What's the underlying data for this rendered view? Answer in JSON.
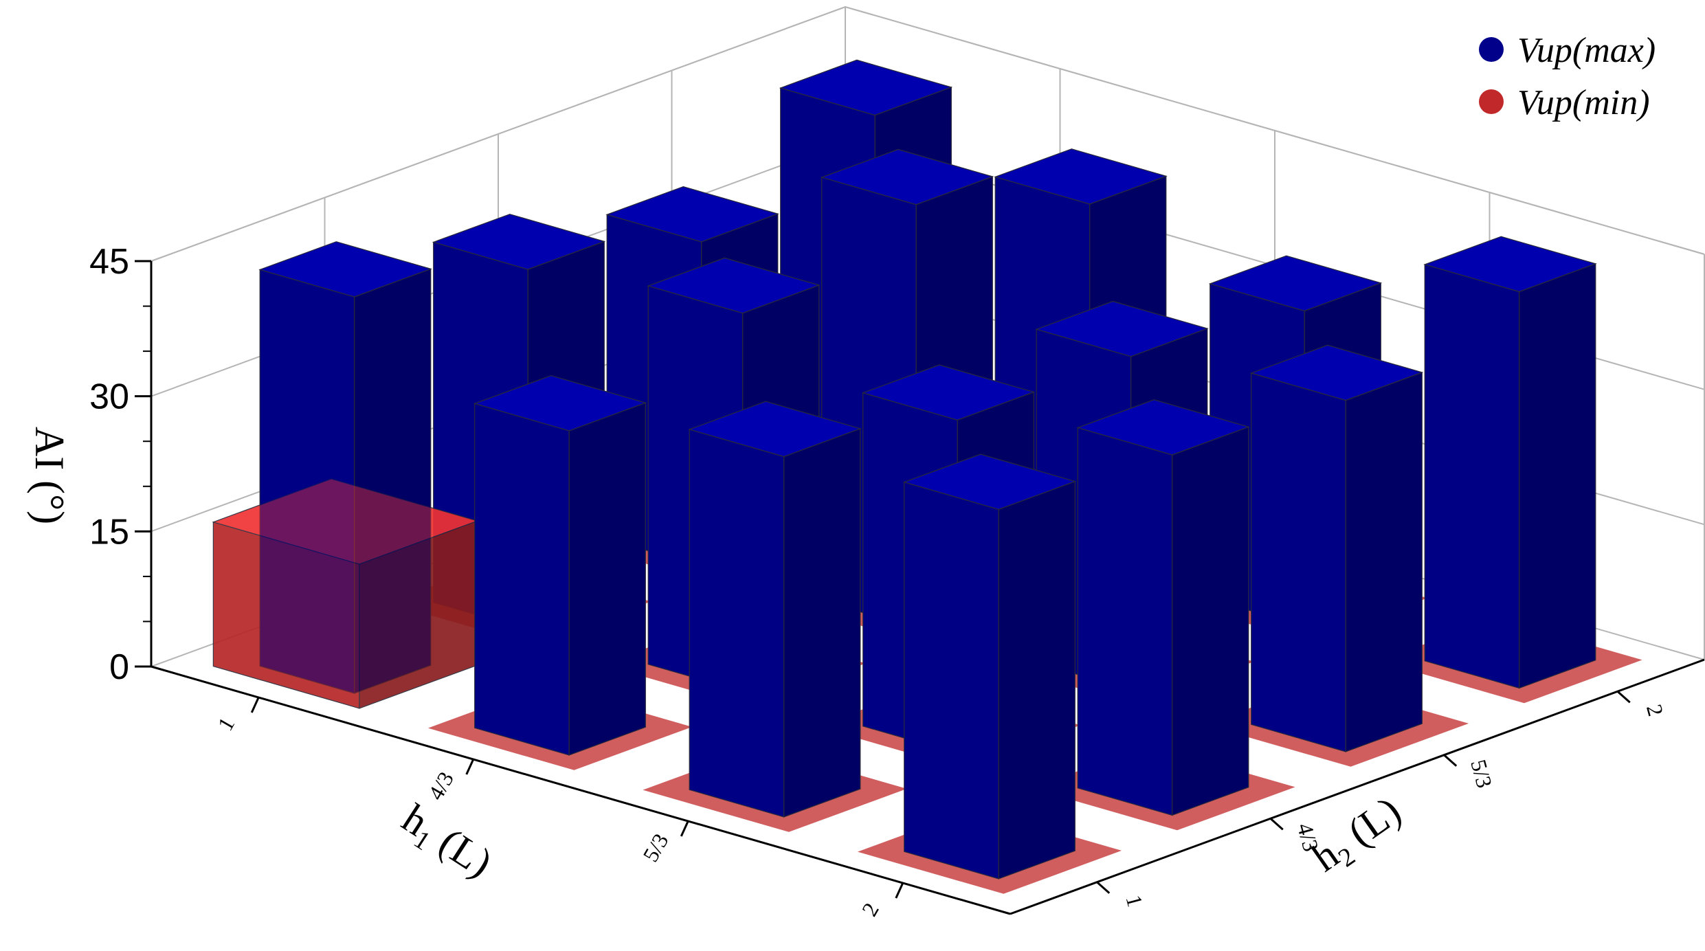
{
  "chart_data": {
    "type": "bar3d",
    "title": "",
    "zlabel": "AI (°)",
    "xlabel": "h",
    "xlabel_sub": "1",
    "xlabel_unit": " (L)",
    "ylabel": "h",
    "ylabel_sub": "2",
    "ylabel_unit": " (L)",
    "zticks": [
      "0",
      "15",
      "30",
      "45"
    ],
    "zlim": [
      0,
      45
    ],
    "x_categories": [
      "1",
      "4/3",
      "5/3",
      "2"
    ],
    "y_categories": [
      "1",
      "4/3",
      "5/3",
      "2"
    ],
    "series": [
      {
        "name": "Vup(max)",
        "color": "#00008b",
        "values": [
          [
            44,
            40,
            36,
            43
          ],
          [
            36,
            42,
            47,
            40
          ],
          [
            40,
            37,
            37,
            35
          ],
          [
            41,
            40,
            39,
            44
          ]
        ]
      },
      {
        "name": "Vup(min)",
        "color": "#c0282a",
        "values": [
          [
            16,
            2,
            2,
            2
          ],
          [
            2,
            2,
            2,
            2
          ],
          [
            2,
            2,
            2,
            2
          ],
          [
            2,
            2,
            2,
            2
          ]
        ]
      }
    ],
    "legend_position": "top-right",
    "grid": true
  }
}
